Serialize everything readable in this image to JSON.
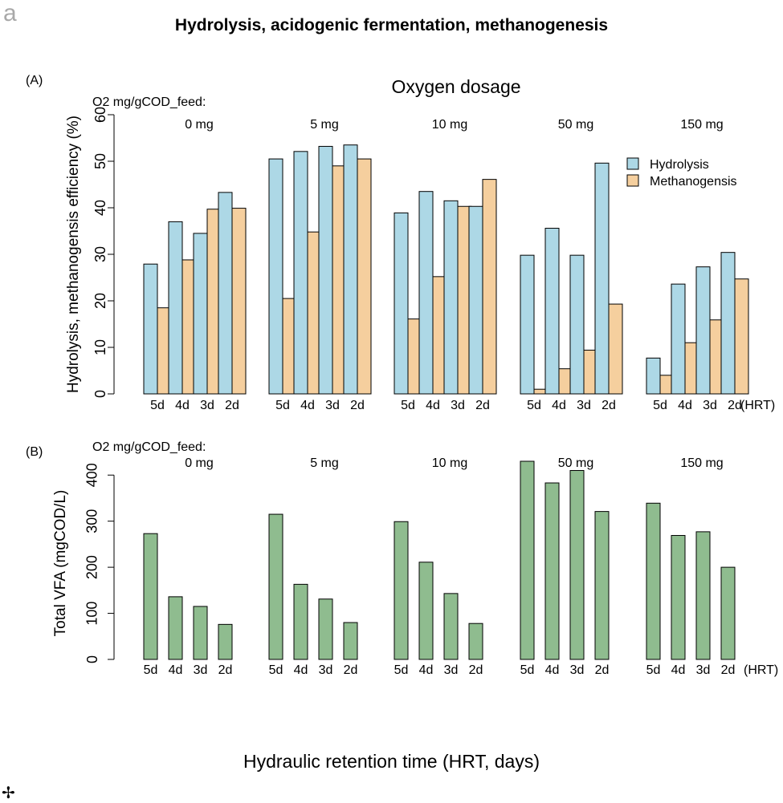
{
  "figure": {
    "panel_letter": "a",
    "title": "Hydrolysis, acidogenic fermentation, methanogenesis",
    "xlabel": "Hydraulic retention time (HRT, days)",
    "corner_mark": "✢"
  },
  "chart_data": [
    {
      "type": "bar",
      "panel_label": "(A)",
      "title": "Oxygen dosage",
      "group_caption": "O2 mg/gCOD_feed:",
      "ylabel": "Hydrolysis, methanogensis efficiency (%)",
      "ylim": [
        0,
        60
      ],
      "yticks": [
        0,
        10,
        20,
        30,
        40,
        50,
        60
      ],
      "groups": [
        "0 mg",
        "5 mg",
        "10 mg",
        "50 mg",
        "150 mg"
      ],
      "categories": [
        "5d",
        "4d",
        "3d",
        "2d"
      ],
      "hrt_label": "(HRT)",
      "legend_position": "right",
      "series": [
        {
          "name": "Hydrolysis",
          "color": "#add8e6",
          "values": [
            [
              27.9,
              37.0,
              34.5,
              43.3
            ],
            [
              50.5,
              52.1,
              53.2,
              53.5
            ],
            [
              38.9,
              43.5,
              41.5,
              40.3
            ],
            [
              29.8,
              35.6,
              29.8,
              49.6
            ],
            [
              7.7,
              23.6,
              27.3,
              30.4
            ]
          ]
        },
        {
          "name": "Methanogensis",
          "color": "#f5cf9e",
          "values": [
            [
              18.5,
              28.8,
              39.7,
              39.9
            ],
            [
              20.5,
              34.8,
              49.0,
              50.5
            ],
            [
              16.1,
              25.2,
              40.3,
              46.1
            ],
            [
              1.0,
              5.4,
              9.4,
              19.3
            ],
            [
              4.0,
              11.0,
              15.9,
              24.7
            ]
          ]
        }
      ]
    },
    {
      "type": "bar",
      "panel_label": "(B)",
      "group_caption": "O2 mg/gCOD_feed:",
      "ylabel": "Total VFA (mgCOD/L)",
      "ylim": [
        0,
        430
      ],
      "yticks": [
        0,
        100,
        200,
        300,
        400
      ],
      "groups": [
        "0 mg",
        "5 mg",
        "10 mg",
        "50 mg",
        "150 mg"
      ],
      "categories": [
        "5d",
        "4d",
        "3d",
        "2d"
      ],
      "hrt_label": "(HRT)",
      "series": [
        {
          "color": "#8fbc8f",
          "values": [
            [
              273,
              136,
              115,
              76
            ],
            [
              315,
              163,
              131,
              80
            ],
            [
              299,
              211,
              143,
              78
            ],
            [
              430,
              383,
              410,
              321
            ],
            [
              339,
              269,
              277,
              200
            ]
          ]
        }
      ]
    }
  ]
}
